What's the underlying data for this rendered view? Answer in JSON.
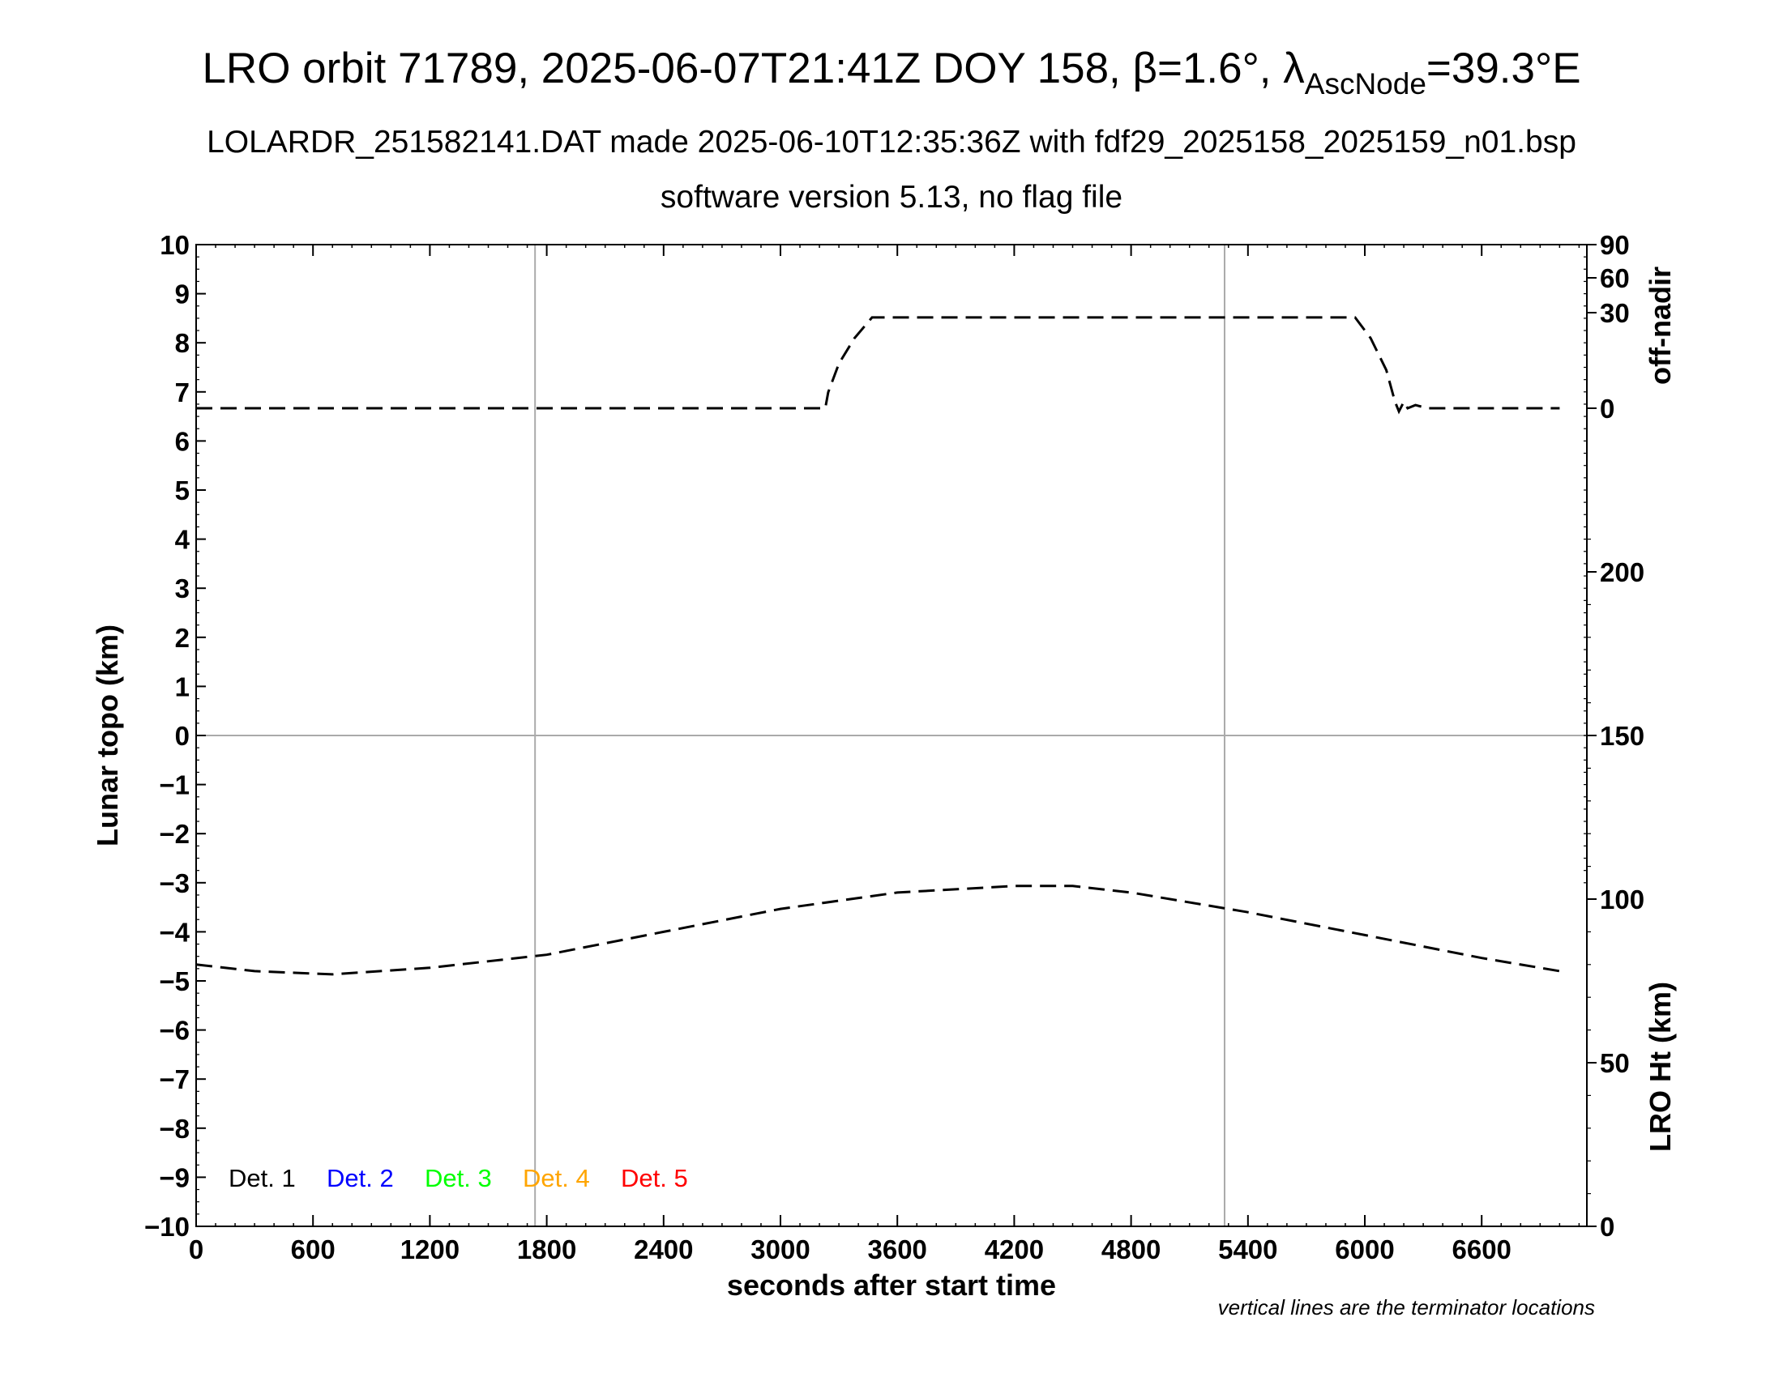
{
  "header": {
    "title_prefix": "LRO orbit 71789, 2025-06-07T21:41Z DOY 158, β=1.6°, λ",
    "title_sub": "AscNode",
    "title_suffix": "=39.3°E",
    "subtitle": "LOLARDR_251582141.DAT made 2025-06-10T12:35:36Z with fdf29_2025158_2025159_n01.bsp",
    "subtitle2": "software version 5.13, no flag file"
  },
  "footnote": "vertical lines are the terminator locations",
  "chart_data": {
    "type": "line",
    "xlabel": "seconds after start time",
    "xlim": [
      0,
      7140
    ],
    "xticks": [
      0,
      600,
      1200,
      1800,
      2400,
      3000,
      3600,
      4200,
      4800,
      5400,
      6000,
      6600
    ],
    "y_left": {
      "label": "Lunar topo (km)",
      "ylim": [
        -10,
        10
      ],
      "ticks": [
        10,
        9,
        8,
        7,
        6,
        5,
        4,
        3,
        2,
        1,
        0,
        -1,
        -2,
        -3,
        -4,
        -5,
        -6,
        -7,
        -8,
        -9,
        -10
      ],
      "tick_labels": [
        "10",
        "9",
        "8",
        "7",
        "6",
        "5",
        "4",
        "3",
        "2",
        "1",
        "0",
        "−1",
        "−2",
        "−3",
        "−4",
        "−5",
        "−6",
        "−7",
        "−8",
        "−9",
        "−10"
      ]
    },
    "y_right_top": {
      "label": "off-nadir",
      "ticks": [
        90,
        60,
        30,
        0
      ]
    },
    "y_right_bottom": {
      "label": "LRO Ht (km)",
      "ylim": [
        0,
        300
      ],
      "ticks": [
        200,
        150,
        100,
        50,
        0
      ]
    },
    "terminator_lines_x": [
      1740,
      5280
    ],
    "grid": "horizontal line at topo 0 and vertical lines at terminators",
    "legend": {
      "placement": "bottom-left",
      "entries": [
        {
          "label": "Det. 1",
          "color": "#000000"
        },
        {
          "label": "Det. 2",
          "color": "#0000ff"
        },
        {
          "label": "Det. 3",
          "color": "#00ff00"
        },
        {
          "label": "Det. 4",
          "color": "#ffa500"
        },
        {
          "label": "Det. 5",
          "color": "#ff0000"
        }
      ]
    },
    "series": [
      {
        "axis": "off-nadir",
        "style": "dashed",
        "color": "#000000",
        "x": [
          0,
          3230,
          3245,
          3300,
          3380,
          3470,
          5950,
          6030,
          6110,
          6155,
          6175,
          6200,
          6220,
          6260,
          6290,
          6320,
          7000
        ],
        "y": [
          0,
          0,
          5,
          14,
          22,
          28.5,
          28.5,
          22,
          12,
          2,
          -1,
          2,
          0,
          1,
          0.5,
          0,
          0
        ]
      },
      {
        "axis": "LRO Ht (km)",
        "style": "dashed",
        "color": "#000000",
        "x": [
          0,
          300,
          700,
          1200,
          1800,
          2400,
          3000,
          3600,
          4200,
          4500,
          4800,
          5400,
          6000,
          6600,
          7000
        ],
        "y": [
          80,
          78,
          77,
          79,
          83,
          90,
          97,
          102,
          104,
          104,
          102,
          96,
          89,
          82,
          78
        ]
      }
    ]
  }
}
